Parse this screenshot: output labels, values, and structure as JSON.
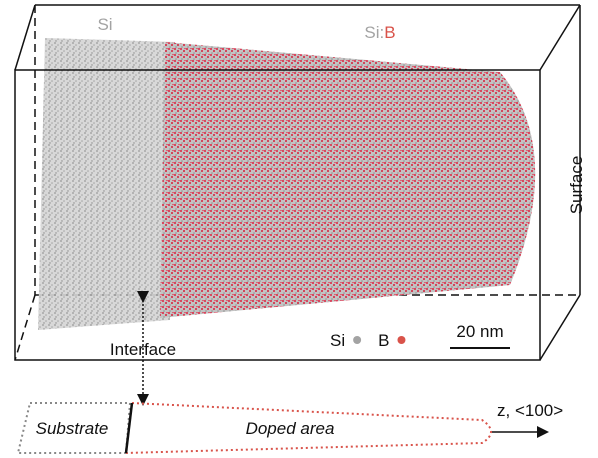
{
  "labels": {
    "left_region": "Si",
    "right_region_host": "Si:",
    "right_region_dopant": "B",
    "surface": "Surface",
    "interface": "Interface"
  },
  "legend": {
    "items": [
      {
        "label": "Si",
        "color": "#a3a3a3"
      },
      {
        "label": "B",
        "color": "#d9534a"
      }
    ],
    "scale_bar": "20 nm"
  },
  "schematic": {
    "axis": "z, <100>",
    "substrate": "Substrate",
    "doped": "Doped area"
  }
}
